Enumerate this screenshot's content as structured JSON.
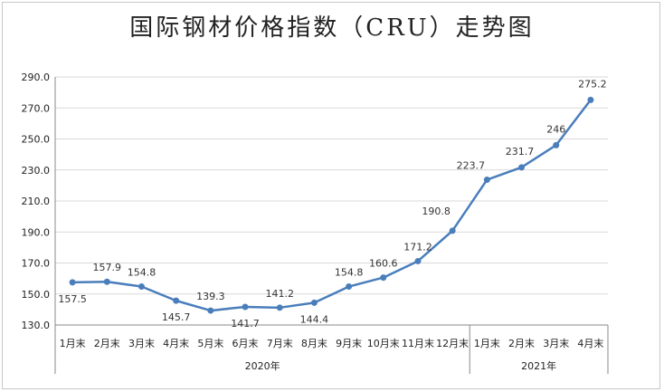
{
  "title": "国际钢材价格指数（CRU）走势图",
  "chart_data": {
    "type": "line",
    "title": "国际钢材价格指数（CRU）走势图",
    "categories": [
      "1月末",
      "2月末",
      "3月末",
      "4月末",
      "5月末",
      "6月末",
      "7月末",
      "8月末",
      "9月末",
      "10月末",
      "11月末",
      "12月末",
      "1月末",
      "2月末",
      "3月末",
      "4月末"
    ],
    "groups": [
      {
        "label": "2020年",
        "count": 12
      },
      {
        "label": "2021年",
        "count": 4
      }
    ],
    "series": [
      {
        "values": [
          157.5,
          157.9,
          154.8,
          145.7,
          139.3,
          141.7,
          141.2,
          144.4,
          154.8,
          160.6,
          171.2,
          190.8,
          223.7,
          231.7,
          246,
          275.2
        ]
      }
    ],
    "data_labels": [
      "157.5",
      "157.9",
      "154.8",
      "145.7",
      "139.3",
      "141.7",
      "141.2",
      "144.4",
      "154.8",
      "160.6",
      "171.2",
      "190.8",
      "223.7",
      "231.7",
      "246",
      "275.2"
    ],
    "y_ticks": [
      "130.0",
      "150.0",
      "170.0",
      "190.0",
      "210.0",
      "230.0",
      "250.0",
      "270.0",
      "290.0"
    ],
    "ylim": [
      130,
      290
    ],
    "grid": true,
    "line_color": "#4a7ebb",
    "grid_color": "#d9d9d9"
  }
}
